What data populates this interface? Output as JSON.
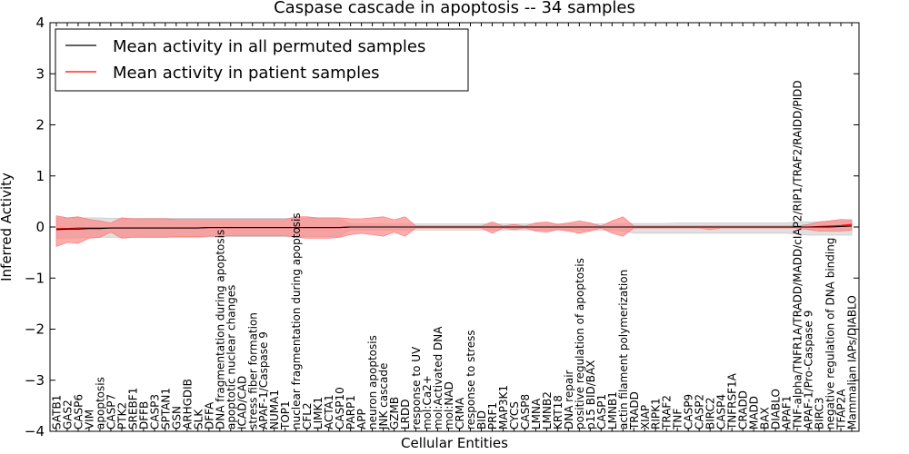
{
  "chart_data": {
    "type": "line",
    "title": "Caspase cascade in apoptosis -- 34 samples",
    "xlabel": "Cellular Entities",
    "ylabel": "Inferred Activity",
    "ylim": [
      -4,
      4
    ],
    "yticks": [
      "4",
      "3",
      "2",
      "1",
      "0",
      "−1",
      "−2",
      "−3",
      "−4"
    ],
    "grid": false,
    "legend_position": "top-left",
    "legend": [
      {
        "label": "Mean activity in all permuted samples",
        "color": "#000000"
      },
      {
        "label": "Mean activity in patient samples",
        "color": "#ff0000"
      }
    ],
    "categories": [
      "SATB1",
      "GAS2",
      "CASP6",
      "VIM",
      "apoptosis",
      "CASP7",
      "PTK2",
      "SREBF1",
      "DFFB",
      "CASP3",
      "SPTAN1",
      "GSN",
      "ARHGDIB",
      "SLK",
      "DFFA",
      "DNA fragmentation during apoptosis",
      "apoptotic nuclear changes",
      "ICAD/CAD",
      "stress fiber formation",
      "APAF-1/Caspase 9",
      "NUMA1",
      "TOP1",
      "nuclear fragmentation during apoptosis",
      "CFL2",
      "LIMK1",
      "ACTA1",
      "CASP10",
      "PARP1",
      "APP",
      "neuron apoptosis",
      "JNK cascade",
      "GZMB",
      "LRDD",
      "response to UV",
      "mol:Ca2+",
      "mol:Activated DNA",
      "mol:NAD",
      "CRMA",
      "response to stress",
      "BID",
      "PRF1",
      "MAP3K1",
      "CYCS",
      "CASP8",
      "LMNA",
      "LMNB2",
      "KRT18",
      "DNA repair",
      "positive regulation of apoptosis",
      "p15 BID/BAX",
      "CASP1",
      "LMNB1",
      "actin filament polymerization",
      "TRADD",
      "XIAP",
      "RIPK1",
      "TRAF2",
      "TNF",
      "CASP9",
      "CASP2",
      "BIRC2",
      "CASP4",
      "TNFRSF1A",
      "CRADD",
      "MADD",
      "BAX",
      "DIABLO",
      "APAF1",
      "TNF-alpha/TNFR1A/TRADD/MADD/cIAP2/RIP1/TRAF2/RAIDD/PIDD",
      "APAF-1/Pro-Caspase 9",
      "BIRC3",
      "negative regulation of DNA binding",
      "TFAP2A",
      "Mammalian IAPs/DIABLO"
    ],
    "series": [
      {
        "name": "Mean activity in all permuted samples",
        "color": "#000000",
        "values": [
          -0.05,
          -0.04,
          -0.04,
          -0.03,
          -0.03,
          -0.02,
          -0.02,
          -0.02,
          -0.02,
          -0.02,
          -0.02,
          -0.02,
          -0.02,
          -0.02,
          -0.01,
          -0.01,
          -0.01,
          -0.01,
          -0.01,
          -0.01,
          -0.01,
          -0.01,
          -0.01,
          -0.01,
          -0.01,
          -0.01,
          -0.01,
          0,
          0,
          0,
          0,
          0,
          0,
          0,
          0,
          0,
          0,
          0,
          0,
          0,
          0,
          0,
          0,
          0,
          0,
          0,
          0,
          0,
          0,
          0,
          0,
          0,
          0,
          0,
          0,
          0,
          0,
          0,
          0,
          0,
          0,
          0,
          0,
          0,
          0,
          0,
          0,
          0,
          0,
          0,
          0,
          0,
          0.01,
          0.02
        ]
      },
      {
        "name": "Mean activity in patient samples",
        "color": "#ff0000",
        "values": [
          -0.03,
          -0.03,
          -0.02,
          -0.02,
          -0.02,
          -0.02,
          -0.02,
          -0.02,
          -0.02,
          -0.02,
          -0.02,
          -0.02,
          -0.02,
          -0.02,
          -0.01,
          -0.01,
          -0.01,
          -0.01,
          -0.01,
          -0.01,
          -0.01,
          -0.01,
          -0.01,
          -0.01,
          -0.01,
          -0.01,
          -0.01,
          0,
          0,
          0,
          0,
          0,
          0,
          0,
          0,
          0,
          0,
          0,
          0,
          0,
          0,
          0,
          0,
          0,
          0,
          0,
          0,
          0,
          0,
          0,
          0,
          0,
          0,
          0,
          0,
          0,
          0,
          0,
          0,
          0,
          0,
          0,
          0,
          0,
          0,
          0,
          0,
          0,
          0,
          0,
          0.01,
          0.02,
          0.03,
          0.05
        ]
      }
    ],
    "bands": [
      {
        "name": "permuted spread",
        "color": "#cccccc",
        "upper": [
          0.18,
          0.18,
          0.18,
          0.18,
          0.18,
          0.17,
          0.17,
          0.17,
          0.17,
          0.17,
          0.17,
          0.17,
          0.17,
          0.17,
          0.17,
          0.17,
          0.17,
          0.17,
          0.17,
          0.17,
          0.17,
          0.17,
          0.17,
          0.17,
          0.17,
          0.17,
          0.16,
          0.06,
          0.06,
          0.06,
          0.06,
          0.06,
          0.06,
          0.06,
          0.06,
          0.06,
          0.06,
          0.06,
          0.06,
          0.06,
          0.06,
          0.06,
          0.06,
          0.06,
          0.06,
          0.06,
          0.06,
          0.06,
          0.06,
          0.06,
          0.06,
          0.06,
          0.06,
          0.07,
          0.07,
          0.07,
          0.07,
          0.08,
          0.08,
          0.08,
          0.08,
          0.08,
          0.08,
          0.08,
          0.08,
          0.08,
          0.08,
          0.08,
          0.1,
          0.1,
          0.1,
          0.12,
          0.12,
          0.12
        ],
        "lower": [
          -0.22,
          -0.22,
          -0.21,
          -0.21,
          -0.2,
          -0.2,
          -0.2,
          -0.2,
          -0.2,
          -0.2,
          -0.2,
          -0.2,
          -0.2,
          -0.2,
          -0.19,
          -0.19,
          -0.19,
          -0.19,
          -0.19,
          -0.19,
          -0.19,
          -0.19,
          -0.19,
          -0.19,
          -0.19,
          -0.19,
          -0.18,
          -0.06,
          -0.06,
          -0.06,
          -0.06,
          -0.06,
          -0.06,
          -0.06,
          -0.06,
          -0.06,
          -0.06,
          -0.06,
          -0.06,
          -0.06,
          -0.06,
          -0.06,
          -0.06,
          -0.06,
          -0.06,
          -0.06,
          -0.06,
          -0.06,
          -0.06,
          -0.06,
          -0.06,
          -0.06,
          -0.08,
          -0.12,
          -0.12,
          -0.12,
          -0.12,
          -0.12,
          -0.12,
          -0.12,
          -0.12,
          -0.12,
          -0.12,
          -0.12,
          -0.12,
          -0.12,
          -0.12,
          -0.12,
          -0.14,
          -0.16,
          -0.16,
          -0.16,
          -0.16,
          -0.16
        ]
      },
      {
        "name": "patient spread",
        "color": "#ff7f7f",
        "upper": [
          0.22,
          0.18,
          0.2,
          0.15,
          0.12,
          0.08,
          0.18,
          0.16,
          0.16,
          0.16,
          0.16,
          0.15,
          0.15,
          0.15,
          0.15,
          0.15,
          0.15,
          0.15,
          0.15,
          0.15,
          0.15,
          0.15,
          0.2,
          0.2,
          0.18,
          0.18,
          0.18,
          0.16,
          0.16,
          0.18,
          0.2,
          0.14,
          0.2,
          0.02,
          0.02,
          0.02,
          0.02,
          0.02,
          0.02,
          0.02,
          0.1,
          0.02,
          0.05,
          0.02,
          0.08,
          0.1,
          0.05,
          0.08,
          0.12,
          0.08,
          0.02,
          0.12,
          0.2,
          0.02,
          0.02,
          0.02,
          0.02,
          0.02,
          0.02,
          0.02,
          0.02,
          0.02,
          0.02,
          0.02,
          0.02,
          0.02,
          0.02,
          0.02,
          0.02,
          0.05,
          0.1,
          0.12,
          0.15,
          0.14
        ],
        "lower": [
          -0.38,
          -0.3,
          -0.32,
          -0.22,
          -0.2,
          -0.1,
          -0.22,
          -0.2,
          -0.2,
          -0.2,
          -0.2,
          -0.19,
          -0.19,
          -0.19,
          -0.18,
          -0.18,
          -0.17,
          -0.17,
          -0.17,
          -0.17,
          -0.17,
          -0.17,
          -0.2,
          -0.22,
          -0.22,
          -0.22,
          -0.2,
          -0.15,
          -0.12,
          -0.15,
          -0.18,
          -0.1,
          -0.18,
          -0.02,
          -0.02,
          -0.02,
          -0.02,
          -0.02,
          -0.02,
          -0.02,
          -0.12,
          -0.02,
          -0.05,
          -0.02,
          -0.08,
          -0.1,
          -0.05,
          -0.08,
          -0.12,
          -0.08,
          -0.02,
          -0.12,
          -0.18,
          -0.02,
          -0.02,
          -0.02,
          -0.02,
          -0.02,
          -0.02,
          -0.02,
          -0.05,
          -0.02,
          -0.02,
          -0.02,
          -0.02,
          -0.02,
          -0.02,
          -0.02,
          -0.02,
          -0.05,
          -0.08,
          -0.08,
          -0.08,
          -0.06
        ]
      }
    ]
  }
}
